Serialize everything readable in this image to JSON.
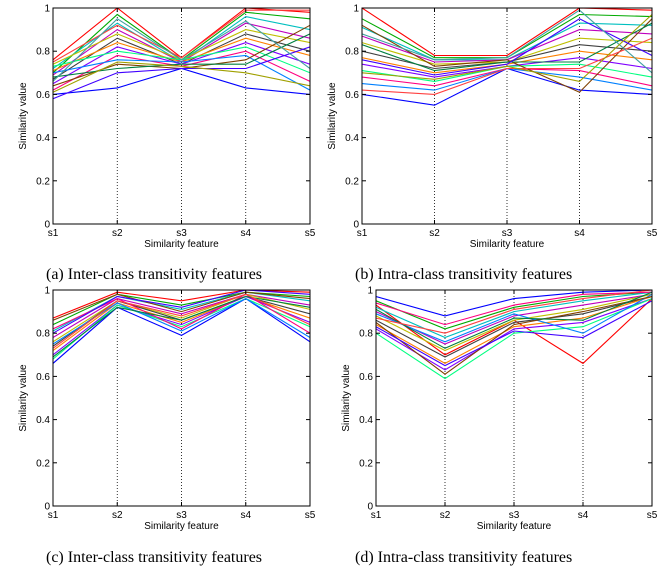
{
  "chart_data": [
    {
      "type": "line",
      "panel": "a",
      "caption": "(a)  Inter-class transitivity features",
      "categories": [
        "s1",
        "s2",
        "s3",
        "s4",
        "s5"
      ],
      "xlabel": "Similarity feature",
      "ylabel": "Similarity value",
      "ylim": [
        0,
        1
      ],
      "yticks": [
        "0",
        "0.2",
        "0.4",
        "0.6",
        "0.8",
        "1"
      ],
      "grid": "vertical dotted lines at s2, s3, s4",
      "series": [
        {
          "values": [
            0.6,
            0.63,
            0.72,
            0.63,
            0.6
          ]
        },
        {
          "values": [
            0.76,
            1.0,
            0.77,
            1.0,
            0.98
          ]
        },
        {
          "values": [
            0.7,
            0.97,
            0.76,
            0.98,
            0.95
          ]
        },
        {
          "values": [
            0.72,
            0.93,
            0.75,
            0.96,
            0.9
          ]
        },
        {
          "values": [
            0.69,
            0.9,
            0.75,
            0.93,
            0.86
          ]
        },
        {
          "values": [
            0.74,
            0.88,
            0.76,
            0.9,
            0.84
          ]
        },
        {
          "values": [
            0.67,
            0.86,
            0.74,
            0.88,
            0.8
          ]
        },
        {
          "values": [
            0.71,
            0.84,
            0.75,
            0.86,
            0.78
          ]
        },
        {
          "values": [
            0.65,
            0.82,
            0.74,
            0.84,
            0.74
          ]
        },
        {
          "values": [
            0.73,
            0.8,
            0.76,
            0.82,
            0.7
          ]
        },
        {
          "values": [
            0.62,
            0.78,
            0.73,
            0.8,
            0.66
          ]
        },
        {
          "values": [
            0.7,
            0.76,
            0.75,
            0.78,
            0.62
          ]
        },
        {
          "values": [
            0.64,
            0.74,
            0.72,
            0.76,
            0.92
          ]
        },
        {
          "values": [
            0.68,
            0.72,
            0.74,
            0.74,
            0.88
          ]
        },
        {
          "values": [
            0.58,
            0.7,
            0.72,
            0.72,
            0.82
          ]
        },
        {
          "values": [
            0.75,
            0.92,
            0.77,
            0.99,
            0.99
          ]
        },
        {
          "values": [
            0.66,
            0.95,
            0.76,
            0.94,
            0.72
          ]
        },
        {
          "values": [
            0.61,
            0.75,
            0.73,
            0.7,
            0.64
          ]
        }
      ]
    },
    {
      "type": "line",
      "panel": "b",
      "caption": "(b)  Intra-class transitivity features",
      "categories": [
        "s1",
        "s2",
        "s3",
        "s4",
        "s5"
      ],
      "xlabel": "Similarity feature",
      "ylabel": "Similarity value",
      "ylim": [
        0,
        1
      ],
      "yticks": [
        "0",
        "0.2",
        "0.4",
        "0.6",
        "0.8",
        "1"
      ],
      "grid": "vertical dotted lines at s2, s3, s4",
      "series": [
        {
          "values": [
            0.6,
            0.55,
            0.72,
            0.62,
            0.6
          ]
        },
        {
          "values": [
            1.0,
            0.78,
            0.78,
            1.0,
            0.99
          ]
        },
        {
          "values": [
            0.95,
            0.77,
            0.77,
            0.97,
            0.96
          ]
        },
        {
          "values": [
            0.91,
            0.76,
            0.76,
            0.93,
            0.92
          ]
        },
        {
          "values": [
            0.87,
            0.75,
            0.76,
            0.9,
            0.88
          ]
        },
        {
          "values": [
            0.84,
            0.74,
            0.75,
            0.86,
            0.84
          ]
        },
        {
          "values": [
            0.8,
            0.72,
            0.75,
            0.83,
            0.8
          ]
        },
        {
          "values": [
            0.77,
            0.7,
            0.74,
            0.8,
            0.76
          ]
        },
        {
          "values": [
            0.74,
            0.68,
            0.73,
            0.77,
            0.72
          ]
        },
        {
          "values": [
            0.71,
            0.66,
            0.73,
            0.74,
            0.68
          ]
        },
        {
          "values": [
            0.68,
            0.64,
            0.72,
            0.71,
            0.64
          ]
        },
        {
          "values": [
            0.65,
            0.62,
            0.72,
            0.68,
            0.62
          ]
        },
        {
          "values": [
            0.92,
            0.73,
            0.76,
            0.61,
            0.95
          ]
        },
        {
          "values": [
            0.83,
            0.71,
            0.75,
            0.75,
            0.93
          ]
        },
        {
          "values": [
            0.76,
            0.69,
            0.74,
            0.95,
            0.78
          ]
        },
        {
          "values": [
            0.62,
            0.6,
            0.72,
            0.72,
            0.86
          ]
        },
        {
          "values": [
            0.88,
            0.76,
            0.77,
            0.99,
            0.7
          ]
        },
        {
          "values": [
            0.7,
            0.67,
            0.73,
            0.66,
            0.97
          ]
        }
      ]
    },
    {
      "type": "line",
      "panel": "c",
      "caption": "(c)  Inter-class transitivity features",
      "categories": [
        "s1",
        "s2",
        "s3",
        "s4",
        "s5"
      ],
      "xlabel": "Similarity feature",
      "ylabel": "Similarity value",
      "ylim": [
        0,
        1
      ],
      "yticks": [
        "0",
        "0.2",
        "0.4",
        "0.6",
        "0.8",
        "1"
      ],
      "grid": "vertical dotted lines at s2, s3, s4",
      "series": [
        {
          "values": [
            0.66,
            0.92,
            0.79,
            0.96,
            0.76
          ]
        },
        {
          "values": [
            0.87,
            0.99,
            0.95,
            1.0,
            0.99
          ]
        },
        {
          "values": [
            0.84,
            0.98,
            0.93,
            0.99,
            0.97
          ]
        },
        {
          "values": [
            0.81,
            0.97,
            0.91,
            0.99,
            0.95
          ]
        },
        {
          "values": [
            0.78,
            0.96,
            0.89,
            0.98,
            0.93
          ]
        },
        {
          "values": [
            0.76,
            0.95,
            0.87,
            0.98,
            0.91
          ]
        },
        {
          "values": [
            0.74,
            0.95,
            0.86,
            0.97,
            0.89
          ]
        },
        {
          "values": [
            0.72,
            0.94,
            0.85,
            0.97,
            0.87
          ]
        },
        {
          "values": [
            0.7,
            0.93,
            0.84,
            0.97,
            0.85
          ]
        },
        {
          "values": [
            0.68,
            0.93,
            0.83,
            0.96,
            0.83
          ]
        },
        {
          "values": [
            0.82,
            0.96,
            0.82,
            0.98,
            0.8
          ]
        },
        {
          "values": [
            0.75,
            0.94,
            0.81,
            0.96,
            0.78
          ]
        },
        {
          "values": [
            0.86,
            0.98,
            0.9,
            0.99,
            0.96
          ]
        },
        {
          "values": [
            0.69,
            0.92,
            0.86,
            0.97,
            0.92
          ]
        },
        {
          "values": [
            0.8,
            0.97,
            0.92,
            1.0,
            0.98
          ]
        },
        {
          "values": [
            0.73,
            0.95,
            0.88,
            0.98,
            0.84
          ]
        }
      ]
    },
    {
      "type": "line",
      "panel": "d",
      "caption": "(d)  Intra-class transitivity features",
      "categories": [
        "s1",
        "s2",
        "s3",
        "s4",
        "s5"
      ],
      "xlabel": "Similarity feature",
      "ylabel": "Similarity value",
      "ylim": [
        0,
        1
      ],
      "yticks": [
        "0",
        "0.2",
        "0.4",
        "0.6",
        "0.8",
        "1"
      ],
      "grid": "vertical dotted lines at s2, s3, s4",
      "series": [
        {
          "values": [
            0.97,
            0.88,
            0.96,
            0.99,
            1.0
          ]
        },
        {
          "values": [
            0.93,
            0.7,
            0.86,
            0.66,
            0.96
          ]
        },
        {
          "values": [
            0.95,
            0.82,
            0.92,
            0.97,
            0.99
          ]
        },
        {
          "values": [
            0.92,
            0.78,
            0.9,
            0.95,
            0.99
          ]
        },
        {
          "values": [
            0.9,
            0.75,
            0.88,
            0.93,
            0.98
          ]
        },
        {
          "values": [
            0.88,
            0.72,
            0.86,
            0.91,
            0.98
          ]
        },
        {
          "values": [
            0.86,
            0.69,
            0.85,
            0.89,
            0.97
          ]
        },
        {
          "values": [
            0.84,
            0.66,
            0.83,
            0.87,
            0.97
          ]
        },
        {
          "values": [
            0.82,
            0.63,
            0.82,
            0.85,
            0.96
          ]
        },
        {
          "values": [
            0.8,
            0.59,
            0.8,
            0.83,
            0.96
          ]
        },
        {
          "values": [
            0.94,
            0.84,
            0.93,
            0.98,
            0.99
          ]
        },
        {
          "values": [
            0.89,
            0.76,
            0.89,
            0.8,
            0.98
          ]
        },
        {
          "values": [
            0.85,
            0.61,
            0.84,
            0.9,
            0.97
          ]
        },
        {
          "values": [
            0.91,
            0.73,
            0.87,
            0.86,
            0.99
          ]
        },
        {
          "values": [
            0.83,
            0.65,
            0.81,
            0.78,
            0.95
          ]
        },
        {
          "values": [
            0.87,
            0.8,
            0.91,
            0.96,
            1.0
          ]
        }
      ]
    }
  ],
  "palette": [
    "#0000ff",
    "#ff0000",
    "#00aa00",
    "#00bfbf",
    "#bf00bf",
    "#bfbf00",
    "#404040",
    "#ff8000",
    "#8000ff",
    "#00ff80",
    "#ff0080",
    "#0080ff",
    "#804000",
    "#008040",
    "#4000ff",
    "#ff4040",
    "#40a0a0",
    "#a0a000"
  ]
}
